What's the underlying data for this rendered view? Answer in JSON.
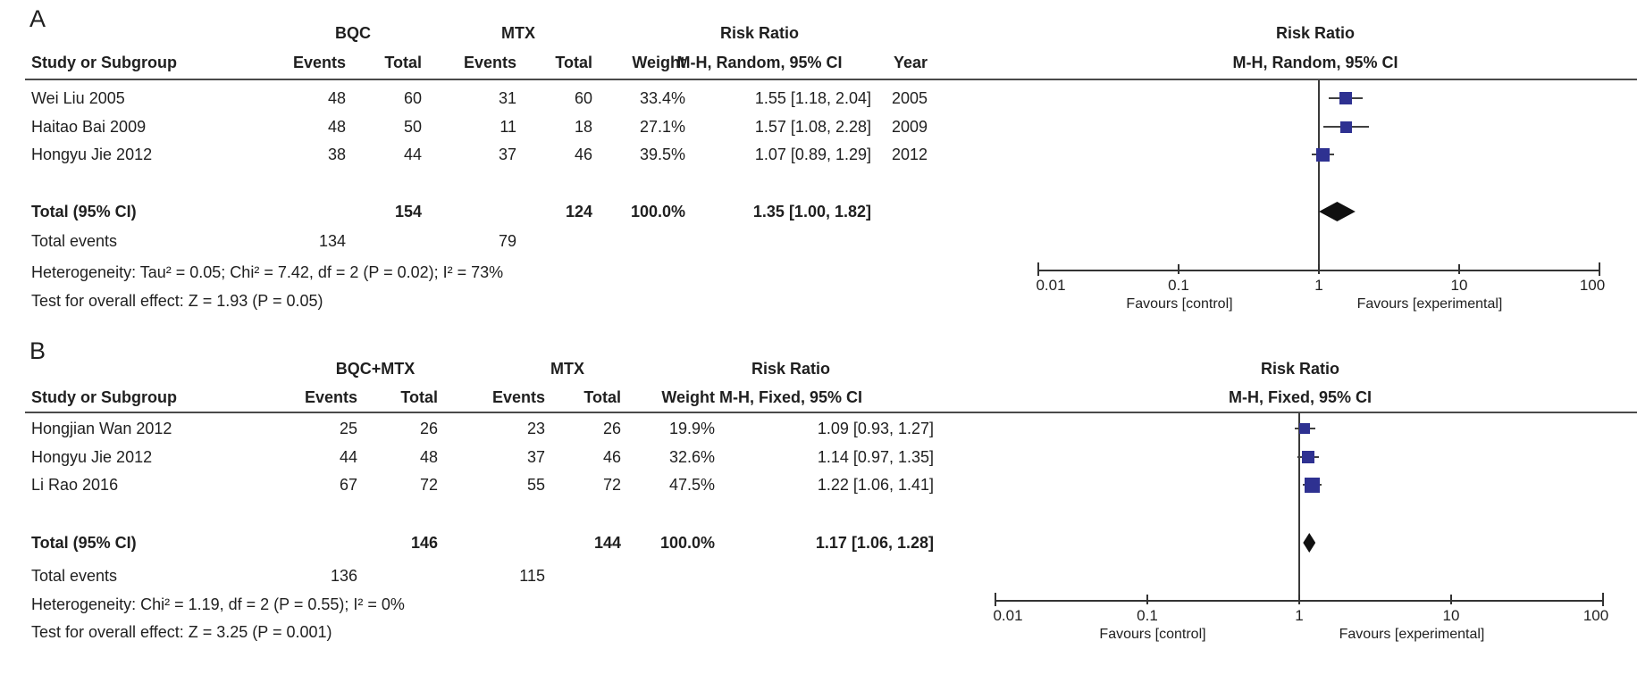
{
  "colors": {
    "square": "#2e3191",
    "ci_line": "#404040",
    "diamond": "#101010",
    "rule": "#4a4a4a",
    "text": "#1f1f1f"
  },
  "panels": [
    {
      "label": "A",
      "group1": "BQC",
      "group2": "MTX",
      "columns": {
        "study": "Study or Subgroup",
        "events": "Events",
        "total": "Total",
        "weight": "Weight",
        "ci": "M-H, Random, 95% CI",
        "year": "Year"
      },
      "ci_group_header": "Risk Ratio",
      "plot_header": {
        "line1": "Risk Ratio",
        "line2": "M-H, Random, 95% CI"
      },
      "studies": [
        {
          "name": "Wei Liu 2005",
          "e1": "48",
          "t1": "60",
          "e2": "31",
          "t2": "60",
          "weight": "33.4%",
          "ci_text": "1.55 [1.18, 2.04]",
          "year": "2005",
          "rr": 1.55,
          "lo": 1.18,
          "hi": 2.04,
          "w": 33.4
        },
        {
          "name": "Haitao Bai 2009",
          "e1": "48",
          "t1": "50",
          "e2": "11",
          "t2": "18",
          "weight": "27.1%",
          "ci_text": "1.57 [1.08, 2.28]",
          "year": "2009",
          "rr": 1.57,
          "lo": 1.08,
          "hi": 2.28,
          "w": 27.1
        },
        {
          "name": "Hongyu Jie 2012",
          "e1": "38",
          "t1": "44",
          "e2": "37",
          "t2": "46",
          "weight": "39.5%",
          "ci_text": "1.07 [0.89, 1.29]",
          "year": "2012",
          "rr": 1.07,
          "lo": 0.89,
          "hi": 1.29,
          "w": 39.5
        }
      ],
      "total": {
        "label": "Total (95% CI)",
        "t1": "154",
        "t2": "124",
        "weight": "100.0%",
        "ci_text": "1.35 [1.00, 1.82]",
        "rr": 1.35,
        "lo": 1.0,
        "hi": 1.82
      },
      "total_events": {
        "label": "Total events",
        "e1": "134",
        "e2": "79"
      },
      "footnotes": [
        "Heterogeneity: Tau² = 0.05; Chi² = 7.42, df = 2 (P = 0.02); I² = 73%",
        "Test for overall effect: Z = 1.93 (P = 0.05)"
      ],
      "axis": {
        "tick_labels": [
          "0.01",
          "0.1",
          "1",
          "10",
          "100"
        ],
        "favours_left": "Favours [control]",
        "favours_right": "Favours [experimental]"
      }
    },
    {
      "label": "B",
      "group1": "BQC+MTX",
      "group2": "MTX",
      "columns": {
        "study": "Study or Subgroup",
        "events": "Events",
        "total": "Total",
        "weight": "Weight",
        "ci": "M-H, Fixed, 95% CI"
      },
      "ci_group_header": "Risk Ratio",
      "plot_header": {
        "line1": "Risk Ratio",
        "line2": "M-H, Fixed, 95% CI"
      },
      "studies": [
        {
          "name": "Hongjian Wan 2012",
          "e1": "25",
          "t1": "26",
          "e2": "23",
          "t2": "26",
          "weight": "19.9%",
          "ci_text": "1.09 [0.93, 1.27]",
          "rr": 1.09,
          "lo": 0.93,
          "hi": 1.27,
          "w": 19.9
        },
        {
          "name": "Hongyu Jie 2012",
          "e1": "44",
          "t1": "48",
          "e2": "37",
          "t2": "46",
          "weight": "32.6%",
          "ci_text": "1.14 [0.97, 1.35]",
          "rr": 1.14,
          "lo": 0.97,
          "hi": 1.35,
          "w": 32.6
        },
        {
          "name": "Li Rao 2016",
          "e1": "67",
          "t1": "72",
          "e2": "55",
          "t2": "72",
          "weight": "47.5%",
          "ci_text": "1.22 [1.06, 1.41]",
          "rr": 1.22,
          "lo": 1.06,
          "hi": 1.41,
          "w": 47.5
        }
      ],
      "total": {
        "label": "Total (95% CI)",
        "t1": "146",
        "t2": "144",
        "weight": "100.0%",
        "ci_text": "1.17 [1.06, 1.28]",
        "rr": 1.17,
        "lo": 1.06,
        "hi": 1.28
      },
      "total_events": {
        "label": "Total events",
        "e1": "136",
        "e2": "115"
      },
      "footnotes": [
        "Heterogeneity: Chi² = 1.19, df = 2 (P = 0.55); I² = 0%",
        "Test for overall effect: Z = 3.25 (P = 0.001)"
      ],
      "axis": {
        "tick_labels": [
          "0.01",
          "0.1",
          "1",
          "10",
          "100"
        ],
        "favours_left": "Favours [control]",
        "favours_right": "Favours [experimental]"
      }
    }
  ],
  "chart_data": [
    {
      "type": "scatter",
      "subtype": "forest_plot",
      "title": "Risk Ratio M-H, Random, 95% CI",
      "x_scale": "log10",
      "xlim": [
        0.01,
        100
      ],
      "x_ticks": [
        0.01,
        0.1,
        1,
        10,
        100
      ],
      "comparison": "BQC vs MTX",
      "points": [
        {
          "study": "Wei Liu 2005",
          "rr": 1.55,
          "ci": [
            1.18,
            2.04
          ],
          "weight_pct": 33.4,
          "events": [
            48,
            60,
            31,
            60
          ],
          "year": 2005
        },
        {
          "study": "Haitao Bai 2009",
          "rr": 1.57,
          "ci": [
            1.08,
            2.28
          ],
          "weight_pct": 27.1,
          "events": [
            48,
            50,
            11,
            18
          ],
          "year": 2009
        },
        {
          "study": "Hongyu Jie 2012",
          "rr": 1.07,
          "ci": [
            0.89,
            1.29
          ],
          "weight_pct": 39.5,
          "events": [
            38,
            44,
            37,
            46
          ],
          "year": 2012
        }
      ],
      "summary": {
        "label": "Total (95% CI)",
        "rr": 1.35,
        "ci": [
          1.0,
          1.82
        ],
        "n1": 154,
        "n2": 124,
        "events1": 134,
        "events2": 79
      },
      "heterogeneity": "Tau² = 0.05; Chi² = 7.42, df = 2 (P = 0.02); I² = 73%",
      "overall_effect": "Z = 1.93 (P = 0.05)",
      "annotations": [
        "Favours [control]",
        "Favours [experimental]"
      ]
    },
    {
      "type": "scatter",
      "subtype": "forest_plot",
      "title": "Risk Ratio M-H, Fixed, 95% CI",
      "x_scale": "log10",
      "xlim": [
        0.01,
        100
      ],
      "x_ticks": [
        0.01,
        0.1,
        1,
        10,
        100
      ],
      "comparison": "BQC+MTX vs MTX",
      "points": [
        {
          "study": "Hongjian Wan 2012",
          "rr": 1.09,
          "ci": [
            0.93,
            1.27
          ],
          "weight_pct": 19.9,
          "events": [
            25,
            26,
            23,
            26
          ]
        },
        {
          "study": "Hongyu Jie 2012",
          "rr": 1.14,
          "ci": [
            0.97,
            1.35
          ],
          "weight_pct": 32.6,
          "events": [
            44,
            48,
            37,
            46
          ]
        },
        {
          "study": "Li Rao 2016",
          "rr": 1.22,
          "ci": [
            1.06,
            1.41
          ],
          "weight_pct": 47.5,
          "events": [
            67,
            72,
            55,
            72
          ]
        }
      ],
      "summary": {
        "label": "Total (95% CI)",
        "rr": 1.17,
        "ci": [
          1.06,
          1.28
        ],
        "n1": 146,
        "n2": 144,
        "events1": 136,
        "events2": 115
      },
      "heterogeneity": "Chi² = 1.19, df = 2 (P = 0.55); I² = 0%",
      "overall_effect": "Z = 3.25 (P = 0.001)",
      "annotations": [
        "Favours [control]",
        "Favours [experimental]"
      ]
    }
  ]
}
